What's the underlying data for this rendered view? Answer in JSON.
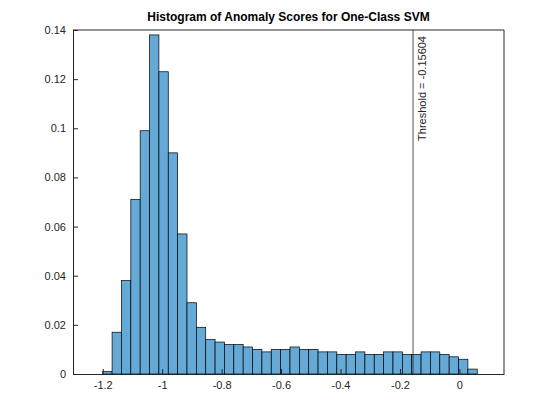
{
  "chart_data": {
    "type": "histogram",
    "title": "Histogram of Anomaly Scores for One-Class SVM",
    "bins": [
      -1.2,
      -1.1685,
      -1.137,
      -1.1055,
      -1.074,
      -1.0425,
      -1.011,
      -0.9795,
      -0.948,
      -0.9165,
      -0.885,
      -0.8535,
      -0.822,
      -0.7905,
      -0.759,
      -0.7275,
      -0.696,
      -0.6645,
      -0.633,
      -0.6015,
      -0.57,
      -0.5385,
      -0.507,
      -0.4755,
      -0.444,
      -0.4125,
      -0.381,
      -0.3495,
      -0.318,
      -0.2865,
      -0.255,
      -0.2235,
      -0.192,
      -0.1605,
      -0.129,
      -0.0975,
      -0.066,
      -0.0345,
      -0.003,
      0.0285,
      0.06
    ],
    "values": [
      0.001,
      0.017,
      0.038,
      0.071,
      0.099,
      0.138,
      0.123,
      0.09,
      0.057,
      0.029,
      0.019,
      0.014,
      0.013,
      0.012,
      0.012,
      0.011,
      0.01,
      0.009,
      0.01,
      0.01,
      0.011,
      0.01,
      0.01,
      0.009,
      0.009,
      0.008,
      0.008,
      0.009,
      0.008,
      0.008,
      0.009,
      0.009,
      0.008,
      0.008,
      0.009,
      0.009,
      0.008,
      0.007,
      0.006,
      0.002
    ],
    "color": "#65a9d7",
    "xlim": [
      -1.3,
      0.15
    ],
    "xticks": [
      -1.2,
      -1,
      -0.8,
      -0.6,
      -0.4,
      -0.2,
      0
    ],
    "ylim": [
      0,
      0.14
    ],
    "yticks": [
      0,
      0.02,
      0.04,
      0.06,
      0.08,
      0.1,
      0.12,
      0.14
    ],
    "annotations": [
      {
        "x": -0.15604,
        "text": "Threshold = -0.15604"
      }
    ]
  }
}
